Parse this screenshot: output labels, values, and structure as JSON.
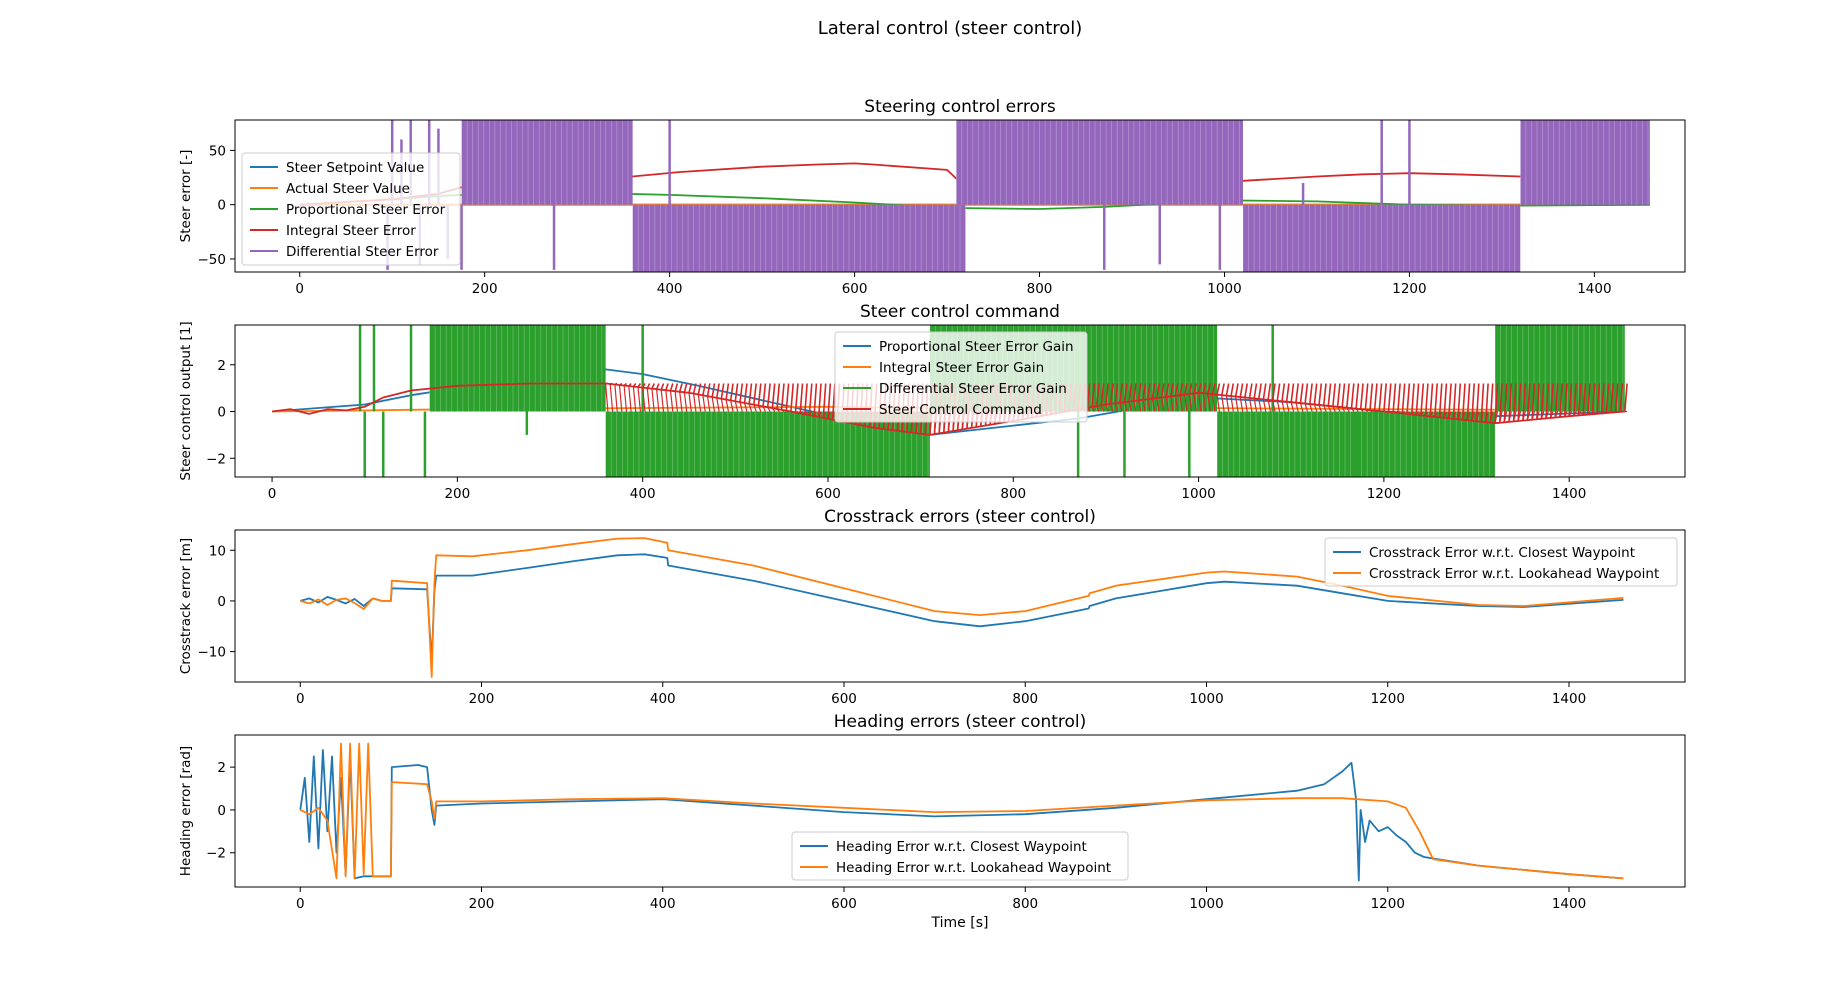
{
  "figure": {
    "suptitle": "Lateral control (steer control)"
  },
  "chart_data": [
    {
      "type": "line",
      "title": "Steering control errors",
      "xlabel": "",
      "ylabel": "Steer error [-]",
      "xlim": [
        -70,
        1498
      ],
      "ylim": [
        -62,
        78
      ],
      "xticks": [
        0,
        200,
        400,
        600,
        800,
        1000,
        1200,
        1400
      ],
      "yticks": [
        -50,
        0,
        50
      ],
      "legend": "upper-left",
      "series": [
        {
          "name": "Steer Setpoint Value",
          "color": "#1f77b4",
          "x": [
            0,
            1460
          ],
          "y": [
            0,
            0
          ]
        },
        {
          "name": "Actual Steer Value",
          "color": "#ff7f0e",
          "x": [
            0,
            1460
          ],
          "y": [
            0,
            0
          ]
        },
        {
          "name": "Proportional Steer Error",
          "color": "#2ca02c",
          "x": [
            0,
            100,
            150,
            200,
            300,
            400,
            500,
            600,
            700,
            800,
            870,
            1000,
            1100,
            1200,
            1300,
            1460
          ],
          "y": [
            0,
            5,
            8,
            10,
            11,
            9,
            6,
            2,
            -3,
            -4,
            -2,
            4,
            3,
            0,
            -1,
            0
          ]
        },
        {
          "name": "Integral Steer Error",
          "color": "#d62728",
          "x": [
            0,
            100,
            150,
            200,
            280,
            360,
            410,
            500,
            560,
            600,
            620,
            700,
            710,
            800,
            870,
            900,
            1000,
            1020,
            1100,
            1150,
            1200,
            1250,
            1320,
            1340,
            1460
          ],
          "y": [
            0,
            5,
            10,
            22,
            28,
            26,
            30,
            35,
            37,
            38,
            37,
            32,
            24,
            18,
            14,
            10,
            17,
            22,
            26,
            28,
            29,
            28,
            26,
            22,
            22
          ]
        },
        {
          "name": "Differential Steer Error",
          "color": "#9467bd",
          "blocks": [
            [
              175,
              360,
              1
            ],
            [
              360,
              720,
              -1
            ],
            [
              710,
              1020,
              1
            ],
            [
              1020,
              1320,
              -1
            ],
            [
              1320,
              1460,
              1
            ]
          ],
          "spikes": [
            [
              95,
              -60
            ],
            [
              100,
              78
            ],
            [
              110,
              60
            ],
            [
              120,
              78
            ],
            [
              130,
              -55
            ],
            [
              140,
              78
            ],
            [
              150,
              70
            ],
            [
              160,
              -50
            ],
            [
              175,
              -60
            ],
            [
              275,
              -60
            ],
            [
              400,
              78
            ],
            [
              870,
              -60
            ],
            [
              930,
              -55
            ],
            [
              995,
              -60
            ],
            [
              1085,
              20
            ],
            [
              1170,
              78
            ],
            [
              1180,
              -60
            ],
            [
              1200,
              78
            ],
            [
              1210,
              -50
            ]
          ]
        }
      ]
    },
    {
      "type": "line",
      "title": "Steer control command",
      "xlabel": "",
      "ylabel": "Steer control output [1]",
      "xlim": [
        -40,
        1525
      ],
      "ylim": [
        -2.8,
        3.7
      ],
      "xticks": [
        0,
        200,
        400,
        600,
        800,
        1000,
        1200,
        1400
      ],
      "yticks": [
        -2,
        0,
        2
      ],
      "legend": "upper-center",
      "series": [
        {
          "name": "Proportional Steer Error Gain",
          "color": "#1f77b4",
          "x": [
            0,
            100,
            150,
            200,
            280,
            360,
            400,
            460,
            560,
            650,
            710,
            800,
            870,
            1000,
            1100,
            1200,
            1320,
            1460
          ],
          "y": [
            0,
            0.3,
            0.7,
            1.0,
            1.3,
            1.8,
            1.6,
            1.1,
            0.2,
            -0.6,
            -1.0,
            -0.6,
            -0.3,
            0.6,
            0.4,
            0,
            -0.2,
            0
          ]
        },
        {
          "name": "Integral Steer Error Gain",
          "color": "#ff7f0e",
          "x": [
            0,
            100,
            200,
            400,
            600,
            710,
            900,
            1000,
            1200,
            1460
          ],
          "y": [
            0,
            0.05,
            0.1,
            0.15,
            0.2,
            0.15,
            0.1,
            0.15,
            0.1,
            0.05
          ]
        },
        {
          "name": "Differential Steer Error Gain",
          "color": "#2ca02c",
          "blocks": [
            [
              170,
              360,
              3.7,
              0
            ],
            [
              360,
              710,
              0,
              -2.8
            ],
            [
              710,
              1020,
              3.7,
              0
            ],
            [
              1020,
              1320,
              0,
              -2.8
            ],
            [
              1320,
              1460,
              3.7,
              0
            ]
          ],
          "spikes": [
            [
              95,
              3.7
            ],
            [
              100,
              -2.8
            ],
            [
              110,
              3.7
            ],
            [
              120,
              -2.8
            ],
            [
              150,
              3.7
            ],
            [
              165,
              -2.8
            ],
            [
              275,
              -1.0
            ],
            [
              400,
              3.7
            ],
            [
              870,
              -2.8
            ],
            [
              920,
              -2.8
            ],
            [
              990,
              -2.8
            ],
            [
              1080,
              3.7
            ],
            [
              1170,
              -2.8
            ],
            [
              1190,
              -2.8
            ]
          ]
        },
        {
          "name": "Steer Control Command",
          "color": "#d62728",
          "x": [
            0,
            20,
            40,
            60,
            80,
            100,
            120,
            150,
            200,
            280,
            360,
            450,
            560,
            650,
            710,
            800,
            900,
            1000,
            1100,
            1200,
            1320,
            1400,
            1460
          ],
          "y": [
            0,
            0.1,
            -0.1,
            0.1,
            0.05,
            0.2,
            0.6,
            0.9,
            1.1,
            1.2,
            1.2,
            0.8,
            0,
            -0.7,
            -1.0,
            -0.4,
            0.3,
            0.8,
            0.4,
            0,
            -0.5,
            -0.2,
            0
          ],
          "band": 1.2
        }
      ]
    },
    {
      "type": "line",
      "title": "Crosstrack errors (steer control)",
      "xlabel": "",
      "ylabel": "Crosstrack error [m]",
      "xlim": [
        -72,
        1528
      ],
      "ylim": [
        -16,
        14
      ],
      "xticks": [
        0,
        200,
        400,
        600,
        800,
        1000,
        1200,
        1400
      ],
      "yticks": [
        -10,
        0,
        10
      ],
      "legend": "upper-right",
      "series": [
        {
          "name": "Crosstrack Error w.r.t. Closest Waypoint",
          "color": "#1f77b4",
          "x": [
            0,
            10,
            20,
            30,
            40,
            50,
            60,
            70,
            80,
            90,
            100,
            101,
            140,
            145,
            148,
            150,
            190,
            250,
            300,
            350,
            380,
            405,
            406,
            500,
            600,
            700,
            750,
            800,
            870,
            871,
            900,
            1000,
            1020,
            1100,
            1150,
            1200,
            1300,
            1350,
            1460
          ],
          "y": [
            0,
            0.5,
            -0.3,
            0.8,
            0.2,
            -0.5,
            0.4,
            -1.0,
            0.5,
            0,
            0,
            2.5,
            2.3,
            -12,
            2,
            5,
            5,
            6.5,
            7.8,
            9,
            9.2,
            8.5,
            7,
            4,
            0,
            -4,
            -5,
            -4,
            -1.5,
            -1,
            0.5,
            3.5,
            3.8,
            3,
            1.5,
            0,
            -1,
            -1.2,
            0.2
          ]
        },
        {
          "name": "Crosstrack Error w.r.t. Lookahead Waypoint",
          "color": "#ff7f0e",
          "x": [
            0,
            10,
            20,
            30,
            40,
            50,
            60,
            70,
            80,
            90,
            100,
            101,
            140,
            145,
            148,
            150,
            190,
            250,
            300,
            350,
            380,
            405,
            406,
            500,
            600,
            700,
            750,
            800,
            870,
            871,
            900,
            1000,
            1020,
            1100,
            1150,
            1200,
            1300,
            1350,
            1460
          ],
          "y": [
            0,
            -0.5,
            0.3,
            -0.8,
            0.2,
            0.5,
            -0.4,
            -1.6,
            0.5,
            0,
            0,
            4,
            3.5,
            -15,
            3.5,
            9,
            8.8,
            10,
            11.2,
            12.3,
            12.4,
            11.5,
            10,
            7,
            2.5,
            -2,
            -2.8,
            -2,
            1,
            1.5,
            3,
            5.6,
            5.8,
            4.8,
            3,
            1,
            -0.8,
            -1.0,
            0.6
          ]
        }
      ]
    },
    {
      "type": "line",
      "title": "Heading errors (steer control)",
      "xlabel": "Time [s]",
      "ylabel": "Heading error [rad]",
      "xlim": [
        -72,
        1528
      ],
      "ylim": [
        -3.6,
        3.5
      ],
      "xticks": [
        0,
        200,
        400,
        600,
        800,
        1000,
        1200,
        1400
      ],
      "yticks": [
        -2,
        0,
        2
      ],
      "legend": "lower-center",
      "series": [
        {
          "name": "Heading Error w.r.t. Closest Waypoint",
          "color": "#1f77b4",
          "x": [
            0,
            5,
            10,
            15,
            20,
            25,
            30,
            35,
            40,
            45,
            50,
            55,
            60,
            70,
            80,
            90,
            100,
            101,
            130,
            140,
            145,
            148,
            150,
            200,
            300,
            400,
            500,
            600,
            700,
            800,
            900,
            1000,
            1100,
            1130,
            1150,
            1160,
            1165,
            1168,
            1170,
            1175,
            1180,
            1190,
            1200,
            1210,
            1220,
            1230,
            1240,
            1300,
            1400,
            1460
          ],
          "y": [
            0,
            1.5,
            -1.5,
            2.5,
            -1.8,
            2.8,
            -1,
            2.5,
            -2,
            1.5,
            -3,
            2.5,
            -3.2,
            -3.1,
            -3.1,
            -3.1,
            -3.1,
            2,
            2.1,
            2,
            0,
            -0.7,
            0.2,
            0.3,
            0.4,
            0.5,
            0.2,
            -0.1,
            -0.3,
            -0.2,
            0.1,
            0.5,
            0.9,
            1.2,
            1.8,
            2.2,
            0.5,
            -3.3,
            0,
            -1.5,
            -0.5,
            -1.0,
            -0.8,
            -1.2,
            -1.5,
            -2,
            -2.2,
            -2.6,
            -3.0,
            -3.2
          ]
        },
        {
          "name": "Heading Error w.r.t. Lookahead Waypoint",
          "color": "#ff7f0e",
          "x": [
            0,
            10,
            20,
            30,
            40,
            45,
            50,
            55,
            60,
            65,
            70,
            75,
            80,
            90,
            100,
            101,
            140,
            145,
            148,
            150,
            200,
            300,
            400,
            500,
            600,
            700,
            800,
            900,
            1000,
            1100,
            1150,
            1200,
            1220,
            1235,
            1250,
            1300,
            1400,
            1460
          ],
          "y": [
            0,
            -0.2,
            0.1,
            -0.5,
            -3.2,
            3.1,
            -3.1,
            3.1,
            -3.2,
            3.1,
            -3.0,
            3.1,
            -3.1,
            -3.1,
            -3.1,
            1.3,
            1.2,
            0.4,
            -0.4,
            0.4,
            0.4,
            0.5,
            0.55,
            0.3,
            0.1,
            -0.1,
            -0.05,
            0.2,
            0.45,
            0.55,
            0.55,
            0.4,
            0.1,
            -1,
            -2.3,
            -2.6,
            -3.0,
            -3.2
          ]
        }
      ]
    }
  ]
}
